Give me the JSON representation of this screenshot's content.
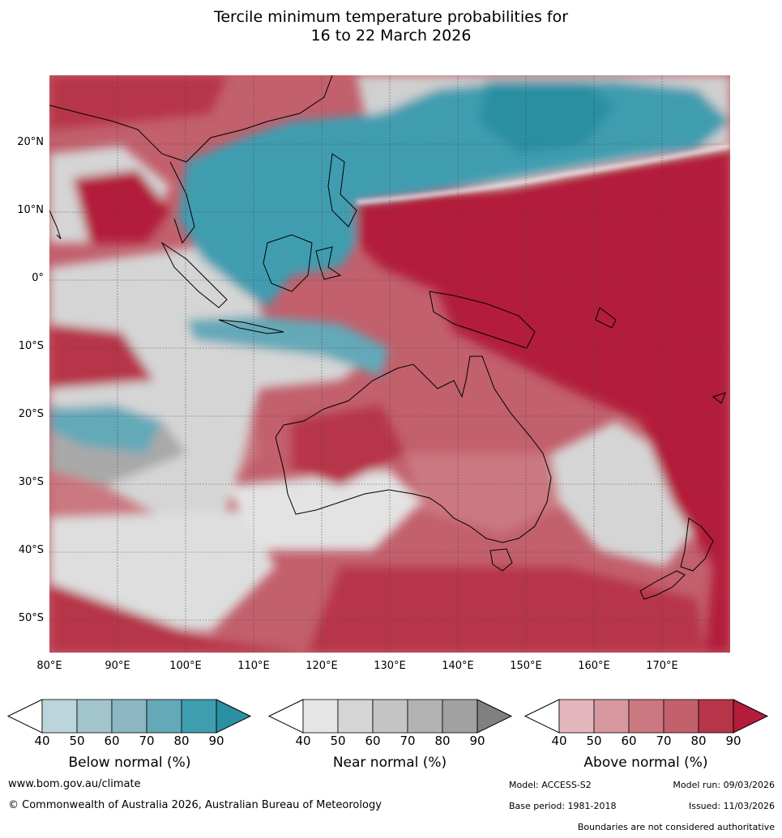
{
  "title": {
    "line1": "Tercile minimum temperature probabilities for",
    "line2": "16 to 22 March 2026"
  },
  "map": {
    "latitude_labels": [
      "20°N",
      "10°N",
      "0°",
      "10°S",
      "20°S",
      "30°S",
      "40°S",
      "50°S"
    ],
    "longitude_labels": [
      "80°E",
      "90°E",
      "100°E",
      "110°E",
      "120°E",
      "130°E",
      "140°E",
      "150°E",
      "160°E",
      "170°E"
    ],
    "lat_range": [
      -55,
      30
    ],
    "lon_range": [
      80,
      180
    ]
  },
  "colorbars": [
    {
      "title": "Below normal (%)",
      "ticks": [
        "40",
        "50",
        "60",
        "70",
        "80",
        "90"
      ],
      "colors": [
        "#bcd4dc",
        "#a2c4cc",
        "#8bb6c2",
        "#64a9b8",
        "#3f9db0",
        "#2a8fa3"
      ]
    },
    {
      "title": "Near normal (%)",
      "ticks": [
        "40",
        "50",
        "60",
        "70",
        "80",
        "90"
      ],
      "colors": [
        "#e5e5e5",
        "#d5d5d5",
        "#c4c4c4",
        "#b3b3b3",
        "#a1a1a1",
        "#808080"
      ]
    },
    {
      "title": "Above normal (%)",
      "ticks": [
        "40",
        "50",
        "60",
        "70",
        "80",
        "90"
      ],
      "colors": [
        "#e4b6bd",
        "#d6979f",
        "#cb7880",
        "#c2606c",
        "#b73548",
        "#b31c3a"
      ]
    }
  ],
  "footer": {
    "website": "www.bom.gov.au/climate",
    "copyright": "© Commonwealth of Australia 2026, Australian Bureau of Meteorology",
    "model": "Model: ACCESS-S2",
    "model_run": "Model run: 09/03/2026",
    "base_period": "Base period: 1981-2018",
    "issued": "Issued: 11/03/2026",
    "disclaimer": "Boundaries are not considered authoritative"
  }
}
